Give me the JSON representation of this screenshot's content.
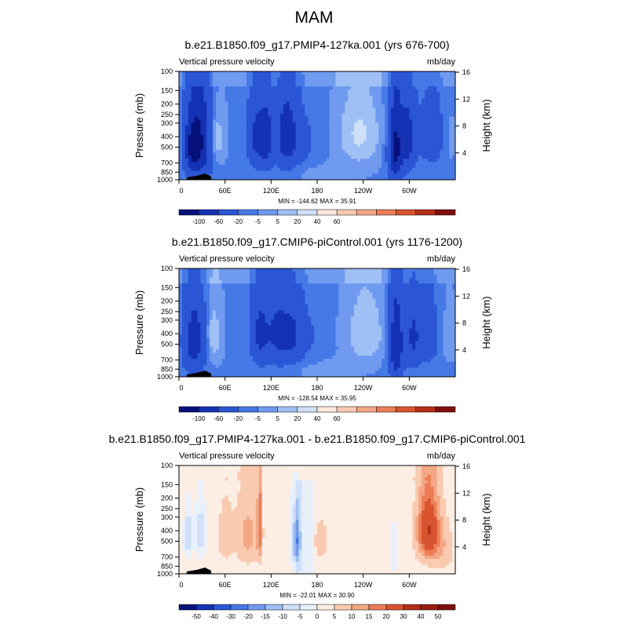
{
  "figure_title": "MAM",
  "chart_data": [
    {
      "type": "heatmap",
      "title": "b.e21.B1850.f09_g17.PMIP4-127ka.001 (yrs 676-700)",
      "left_label": "Vertical pressure velocity",
      "right_label": "mb/day",
      "ylabel": "Pressure (mb)",
      "ylabel_right": "Height (km)",
      "x_ticks": [
        "0",
        "60E",
        "120E",
        "180",
        "120W",
        "60W"
      ],
      "y_ticks": [
        "100",
        "150",
        "200",
        "250",
        "300",
        "400",
        "500",
        "700",
        "850",
        "1000"
      ],
      "y_ticks_right": [
        "16",
        "12",
        "8",
        "4"
      ],
      "stats": "MIN = -144.62   MAX =  35.91",
      "colorbar_labels": [
        "-100",
        "-60",
        "-20",
        "-5",
        "5",
        "20",
        "40",
        "60"
      ],
      "colors": [
        "#06107a",
        "#1432b4",
        "#2a56d6",
        "#4479e6",
        "#6f9aef",
        "#9ec0f5",
        "#cfe0f9",
        "#fde9dc",
        "#f9caaf",
        "#f4a784",
        "#ec7d57",
        "#d8542f",
        "#b42f18",
        "#7e0f0c"
      ],
      "x_range": [
        0,
        360
      ],
      "y_range": [
        1000,
        100
      ],
      "features": [
        {
          "lon": 28,
          "p": 450,
          "width": 14,
          "depth": 900,
          "value": -90
        },
        {
          "lon": 16,
          "p": 500,
          "width": 10,
          "depth": 700,
          "value": -70
        },
        {
          "lon": 48,
          "p": 420,
          "width": 10,
          "depth": 450,
          "value": 25
        },
        {
          "lon": 100,
          "p": 400,
          "width": 10,
          "depth": 650,
          "value": -60
        },
        {
          "lon": 114,
          "p": 420,
          "width": 9,
          "depth": 650,
          "value": -70
        },
        {
          "lon": 140,
          "p": 400,
          "width": 14,
          "depth": 650,
          "value": -75
        },
        {
          "lon": 160,
          "p": 450,
          "width": 22,
          "depth": 600,
          "value": -20
        },
        {
          "lon": 235,
          "p": 380,
          "width": 24,
          "depth": 550,
          "value": 30
        },
        {
          "lon": 190,
          "p": 850,
          "width": 40,
          "depth": 300,
          "value": 8
        },
        {
          "lon": 282,
          "p": 520,
          "width": 9,
          "depth": 950,
          "value": -100
        },
        {
          "lon": 298,
          "p": 420,
          "width": 10,
          "depth": 700,
          "value": -70
        },
        {
          "lon": 330,
          "p": 400,
          "width": 18,
          "depth": 600,
          "value": -35
        },
        {
          "lon": 350,
          "p": 420,
          "width": 10,
          "depth": 500,
          "value": 10
        }
      ]
    },
    {
      "type": "heatmap",
      "title": "b.e21.B1850.f09_g17.CMIP6-piControl.001 (yrs 1176-1200)",
      "left_label": "Vertical pressure velocity",
      "right_label": "mb/day",
      "ylabel": "Pressure (mb)",
      "ylabel_right": "Height (km)",
      "x_ticks": [
        "0",
        "60E",
        "120E",
        "180",
        "120W",
        "60W"
      ],
      "y_ticks": [
        "100",
        "150",
        "200",
        "250",
        "300",
        "400",
        "500",
        "700",
        "850",
        "1000"
      ],
      "y_ticks_right": [
        "16",
        "12",
        "8",
        "4"
      ],
      "stats": "MIN = -128.54   MAX =  35.95",
      "colorbar_labels": [
        "-100",
        "-60",
        "-20",
        "-5",
        "5",
        "20",
        "40",
        "60"
      ],
      "colors": [
        "#06107a",
        "#1432b4",
        "#2a56d6",
        "#4479e6",
        "#6f9aef",
        "#9ec0f5",
        "#cfe0f9",
        "#fde9dc",
        "#f9caaf",
        "#f4a784",
        "#ec7d57",
        "#d8542f",
        "#b42f18",
        "#7e0f0c"
      ],
      "x_range": [
        0,
        360
      ],
      "y_range": [
        1000,
        100
      ],
      "features": [
        {
          "lon": 20,
          "p": 470,
          "width": 14,
          "depth": 800,
          "value": -75
        },
        {
          "lon": 44,
          "p": 420,
          "width": 10,
          "depth": 500,
          "value": 22
        },
        {
          "lon": 105,
          "p": 400,
          "width": 12,
          "depth": 650,
          "value": -60
        },
        {
          "lon": 130,
          "p": 400,
          "width": 16,
          "depth": 650,
          "value": -65
        },
        {
          "lon": 150,
          "p": 420,
          "width": 12,
          "depth": 600,
          "value": -45
        },
        {
          "lon": 170,
          "p": 420,
          "width": 18,
          "depth": 600,
          "value": -15
        },
        {
          "lon": 243,
          "p": 400,
          "width": 22,
          "depth": 550,
          "value": 25
        },
        {
          "lon": 190,
          "p": 850,
          "width": 40,
          "depth": 300,
          "value": 8
        },
        {
          "lon": 283,
          "p": 520,
          "width": 9,
          "depth": 900,
          "value": -95
        },
        {
          "lon": 305,
          "p": 430,
          "width": 10,
          "depth": 650,
          "value": -60
        },
        {
          "lon": 325,
          "p": 420,
          "width": 12,
          "depth": 600,
          "value": -40
        },
        {
          "lon": 352,
          "p": 430,
          "width": 8,
          "depth": 450,
          "value": 8
        }
      ]
    },
    {
      "type": "heatmap",
      "title": "b.e21.B1850.f09_g17.PMIP4-127ka.001 - b.e21.B1850.f09_g17.CMIP6-piControl.001",
      "left_label": "Vertical pressure velocity",
      "right_label": "mb/day",
      "ylabel": "Pressure (mb)",
      "ylabel_right": "Height (km)",
      "x_ticks": [
        "0",
        "60E",
        "120E",
        "180",
        "120W",
        "60W"
      ],
      "y_ticks": [
        "100",
        "150",
        "200",
        "250",
        "300",
        "400",
        "500",
        "700",
        "850",
        "1000"
      ],
      "y_ticks_right": [
        "16",
        "12",
        "8",
        "4"
      ],
      "stats": "MIN = -22.01   MAX =  30.90",
      "colorbar_labels": [
        "-50",
        "-40",
        "-30",
        "-20",
        "-15",
        "-10",
        "-5",
        "0",
        "5",
        "10",
        "15",
        "20",
        "30",
        "40",
        "50"
      ],
      "colors": [
        "#06107a",
        "#1432b4",
        "#2a56d6",
        "#4479e6",
        "#6f9aef",
        "#9ec0f5",
        "#cfe0f9",
        "#e8f0fb",
        "#fdeee4",
        "#f9caaf",
        "#f4a784",
        "#ec7d57",
        "#d8542f",
        "#b42f18",
        "#9a1e10",
        "#7e0f0c"
      ],
      "x_range": [
        0,
        360
      ],
      "y_range": [
        1000,
        100
      ],
      "features": [
        {
          "lon": 12,
          "p": 450,
          "width": 5,
          "depth": 400,
          "value": -14
        },
        {
          "lon": 28,
          "p": 420,
          "width": 6,
          "depth": 450,
          "value": -12
        },
        {
          "lon": 60,
          "p": 450,
          "width": 10,
          "depth": 600,
          "value": 6
        },
        {
          "lon": 90,
          "p": 450,
          "width": 16,
          "depth": 650,
          "value": 10
        },
        {
          "lon": 105,
          "p": 350,
          "width": 3,
          "depth": 700,
          "value": 16
        },
        {
          "lon": 152,
          "p": 500,
          "width": 6,
          "depth": 600,
          "value": -18
        },
        {
          "lon": 185,
          "p": 500,
          "width": 14,
          "depth": 700,
          "value": 4
        },
        {
          "lon": 280,
          "p": 650,
          "width": 3,
          "depth": 600,
          "value": -9
        },
        {
          "lon": 325,
          "p": 400,
          "width": 14,
          "depth": 600,
          "value": 28
        },
        {
          "lon": 345,
          "p": 600,
          "width": 14,
          "depth": 600,
          "value": 6
        }
      ]
    }
  ]
}
